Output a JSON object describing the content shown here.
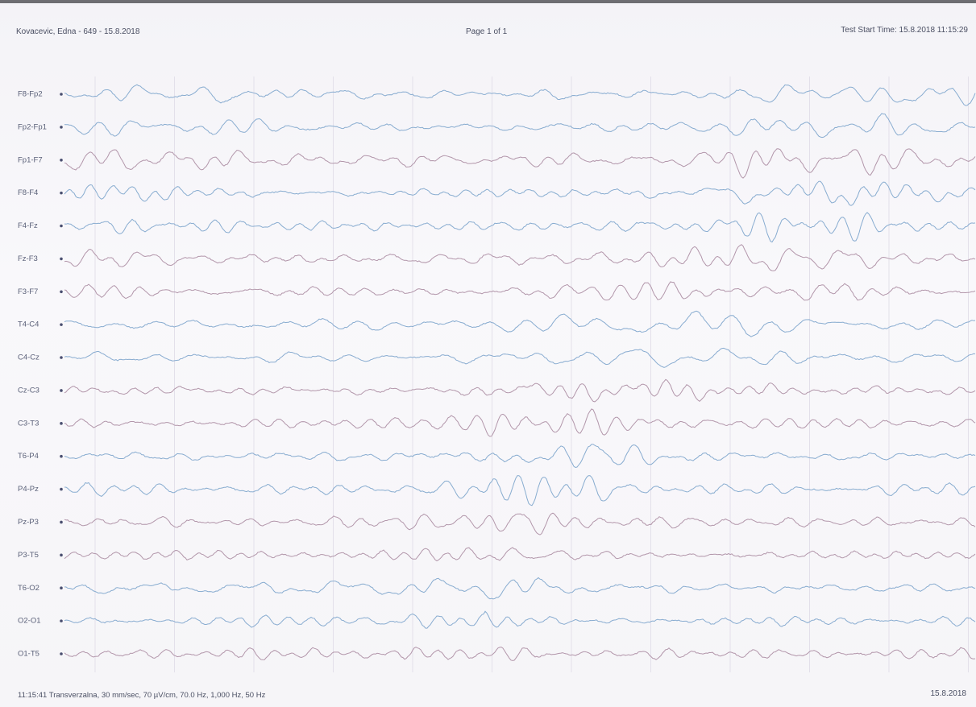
{
  "header": {
    "patient": "Kovacevic, Edna - 649 - 15.8.2018",
    "page": "Page 1 of 1",
    "start_time": "Test Start Time: 15.8.2018 11:15:29"
  },
  "channels": [
    "F8-Fp2",
    "Fp2-Fp1",
    "Fp1-F7",
    "F8-F4",
    "F4-Fz",
    "Fz-F3",
    "F3-F7",
    "T4-C4",
    "C4-Cz",
    "Cz-C3",
    "C3-T3",
    "T6-P4",
    "P4-Pz",
    "Pz-P3",
    "P3-T5",
    "T6-O2",
    "O2-O1",
    "O1-T5"
  ],
  "footer": {
    "settings": "11:15:41 Transverzalna, 30 mm/sec, 70 µV/cm, 70.0 Hz, 1,000 Hz, 50 Hz",
    "date": "15.8.2018"
  }
}
